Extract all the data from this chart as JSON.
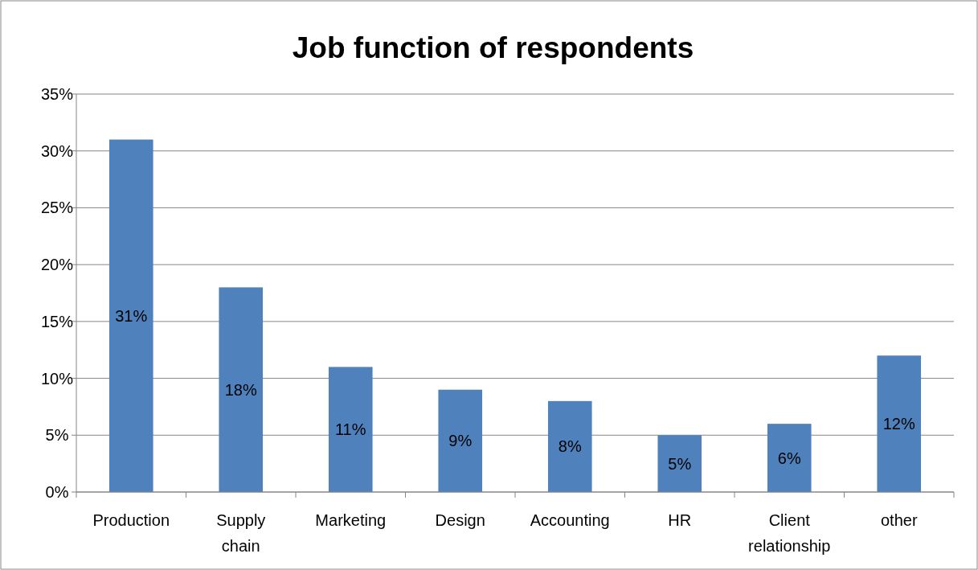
{
  "chart_data": {
    "type": "bar",
    "title": "Job function of respondents",
    "categories": [
      "Production",
      "Supply chain",
      "Marketing",
      "Design",
      "Accounting",
      "HR",
      "Client relationship",
      "other"
    ],
    "values": [
      31,
      18,
      11,
      9,
      8,
      5,
      6,
      12
    ],
    "value_labels": [
      "31%",
      "18%",
      "11%",
      "9%",
      "8%",
      "5%",
      "6%",
      "12%"
    ],
    "color": "#4f81bd",
    "ylim": [
      0,
      35
    ],
    "yticks": [
      {
        "value": 0,
        "label": "0%"
      },
      {
        "value": 5,
        "label": "5%"
      },
      {
        "value": 10,
        "label": "10%"
      },
      {
        "value": 15,
        "label": "15%"
      },
      {
        "value": 20,
        "label": "20%"
      },
      {
        "value": 25,
        "label": "25%"
      },
      {
        "value": 30,
        "label": "30%"
      },
      {
        "value": 35,
        "label": "35%"
      }
    ],
    "grid": "y"
  }
}
